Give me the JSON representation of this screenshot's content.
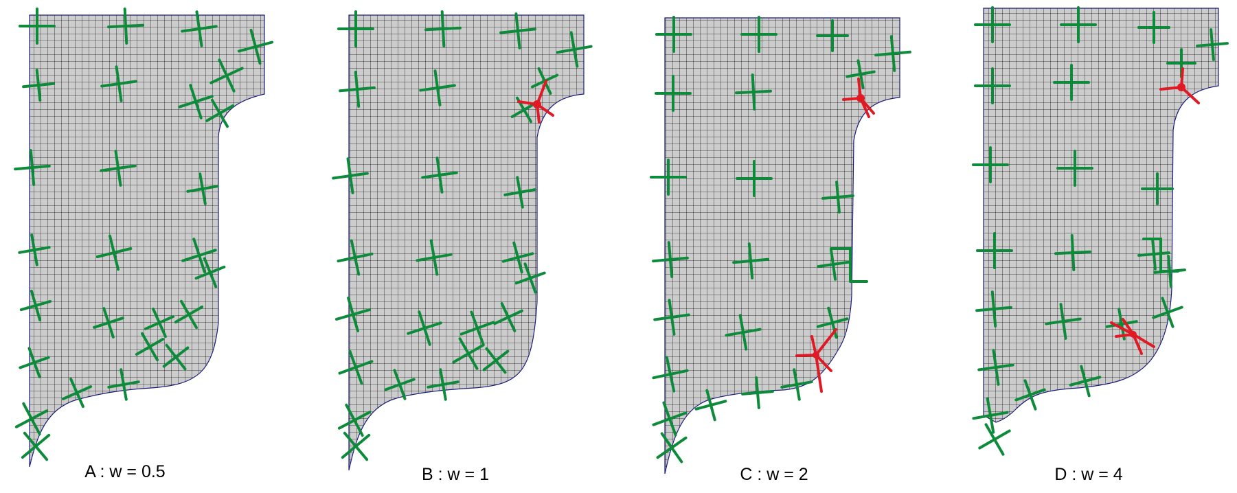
{
  "panels": [
    {
      "id": "A",
      "caption": "A : w = 0.5",
      "singularities": 0
    },
    {
      "id": "B",
      "caption": "B : w = 1",
      "singularities": 1
    },
    {
      "id": "C",
      "caption": "C : w = 2",
      "singularities": 2
    },
    {
      "id": "D",
      "caption": "D : w = 4",
      "singularities": 2
    }
  ],
  "colors": {
    "mesh_fill": "#cccccc",
    "mesh_lines": "#111111",
    "boundary": "#1a1a7a",
    "cross_field": "#0d8a3a",
    "singular_point": "#e01a24"
  },
  "icons": [
    "cross-field-marker",
    "singularity-dot"
  ]
}
